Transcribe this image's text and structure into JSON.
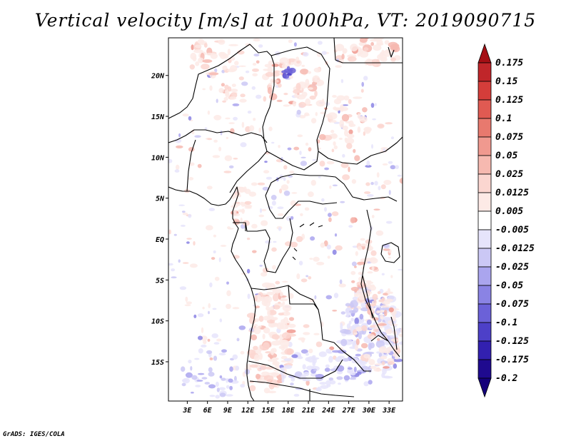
{
  "chart_data": {
    "type": "heatmap",
    "title": "Vertical velocity [m/s] at 1000hPa, VT: 2019090715",
    "x_ticks": [
      "3E",
      "6E",
      "9E",
      "12E",
      "15E",
      "18E",
      "21E",
      "24E",
      "27E",
      "30E",
      "33E"
    ],
    "x_tick_values": [
      3,
      6,
      9,
      12,
      15,
      18,
      21,
      24,
      27,
      30,
      33
    ],
    "y_ticks": [
      "20N",
      "15N",
      "10N",
      "5N",
      "EQ",
      "5S",
      "10S",
      "15S"
    ],
    "y_tick_values": [
      20,
      15,
      10,
      5,
      0,
      -5,
      -10,
      -15
    ],
    "xlim": [
      0.2,
      35
    ],
    "ylim": [
      -19.8,
      24.6
    ],
    "colorbar": {
      "levels": [
        "0.175",
        "0.15",
        "0.125",
        "0.1",
        "0.075",
        "0.05",
        "0.025",
        "0.0125",
        "0.005",
        "-0.005",
        "-0.0125",
        "-0.025",
        "-0.05",
        "-0.075",
        "-0.1",
        "-0.125",
        "-0.175",
        "-0.2"
      ],
      "colors": [
        "#a50f15",
        "#c0262a",
        "#d43d3a",
        "#e05a52",
        "#e8796e",
        "#f0998f",
        "#f6b9b0",
        "#fbd6d0",
        "#fdeae6",
        "#ffffff",
        "#e6e4fb",
        "#cbc8f5",
        "#aaa5ee",
        "#8a83e4",
        "#6b61d8",
        "#4d40c8",
        "#3220b0",
        "#1f0a8f",
        "#14007a"
      ],
      "placement": "right"
    },
    "features": [
      "coastlines",
      "country-borders"
    ]
  },
  "credit": "GrADS: IGES/COLA"
}
